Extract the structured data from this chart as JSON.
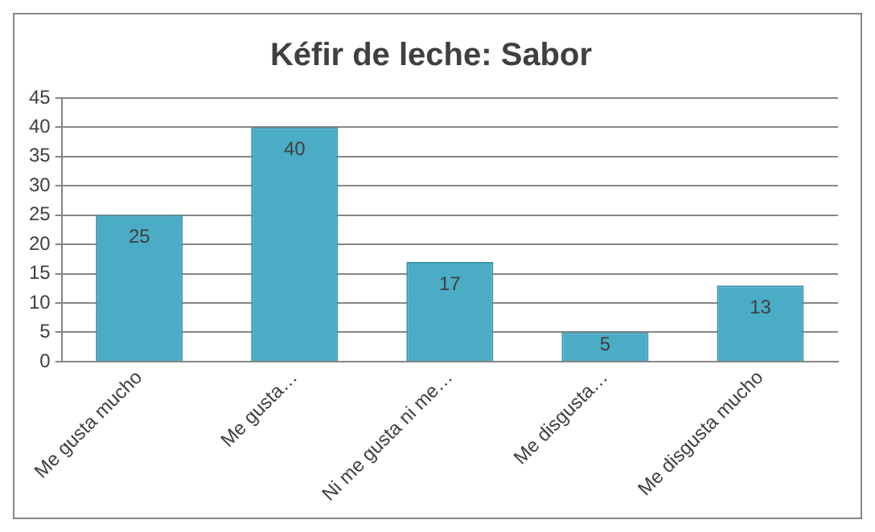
{
  "chart_data": {
    "type": "bar",
    "title": "Kéfir de leche: Sabor",
    "categories": [
      "Me gusta mucho",
      "Me gusta…",
      "Ni me gusta ni me…",
      "Me disgusta…",
      "Me disgusta mucho"
    ],
    "values": [
      25,
      40,
      17,
      5,
      13
    ],
    "color": "#4bacc6",
    "ylim": [
      0,
      45
    ],
    "yticks": [
      0,
      5,
      10,
      15,
      20,
      25,
      30,
      35,
      40,
      45
    ],
    "grid": "y",
    "data_labels": true
  }
}
